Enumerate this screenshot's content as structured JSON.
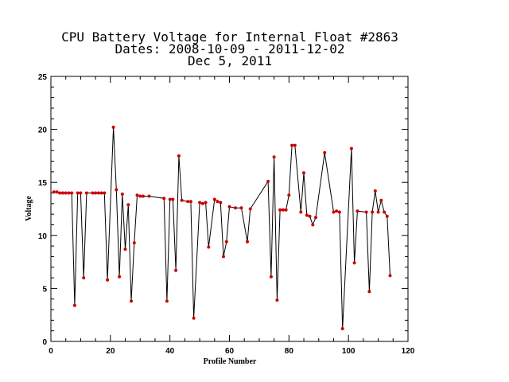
{
  "chart_data": {
    "type": "line",
    "title_lines": [
      "CPU Battery Voltage for Internal Float #2863",
      "Dates:  2008-10-09 -  2011-12-02",
      "Dec  5, 2011"
    ],
    "xlabel": "Profile Number",
    "ylabel": "Voltage",
    "xlim": [
      0,
      120
    ],
    "ylim": [
      0,
      25
    ],
    "xticks": [
      0,
      20,
      40,
      60,
      80,
      100,
      120
    ],
    "yticks": [
      0,
      5,
      10,
      15,
      20,
      25
    ],
    "grid": false,
    "series": [
      {
        "line_color": "#000000",
        "marker_color": "#cc0000",
        "x": [
          1,
          2,
          3,
          4,
          5,
          6,
          7,
          8,
          9,
          10,
          11,
          12,
          14,
          15,
          16,
          17,
          18,
          19,
          21,
          22,
          23,
          24,
          25,
          26,
          27,
          28,
          29,
          30,
          31,
          33,
          38,
          39,
          40,
          41,
          42,
          43,
          44,
          46,
          47,
          48,
          50,
          51,
          52,
          53,
          55,
          56,
          57,
          58,
          59,
          60,
          62,
          64,
          66,
          67,
          73,
          74,
          75,
          76,
          77,
          78,
          79,
          80,
          81,
          82,
          84,
          85,
          86,
          87,
          88,
          89,
          92,
          95,
          96,
          97,
          98,
          101,
          102,
          103,
          106,
          107,
          108,
          109,
          110,
          111,
          112,
          113,
          114
        ],
        "y": [
          14.1,
          14.1,
          14.0,
          14.0,
          14.0,
          14.0,
          14.0,
          3.4,
          14.0,
          14.0,
          6.0,
          14.0,
          14.0,
          14.0,
          14.0,
          14.0,
          14.0,
          5.8,
          20.2,
          14.3,
          6.1,
          13.9,
          8.7,
          12.9,
          3.8,
          9.3,
          13.8,
          13.7,
          13.7,
          13.7,
          13.5,
          3.8,
          13.4,
          13.4,
          6.7,
          17.5,
          13.3,
          13.2,
          13.2,
          2.2,
          13.1,
          13.0,
          13.1,
          8.9,
          13.4,
          13.2,
          13.1,
          8.0,
          9.4,
          12.7,
          12.6,
          12.6,
          9.4,
          12.5,
          15.1,
          6.1,
          17.4,
          3.9,
          12.4,
          12.4,
          12.4,
          13.8,
          18.5,
          18.5,
          12.2,
          15.9,
          11.9,
          11.8,
          11.0,
          11.7,
          17.8,
          12.2,
          12.3,
          12.2,
          1.2,
          18.2,
          7.4,
          12.3,
          12.2,
          4.7,
          12.2,
          14.2,
          12.2,
          13.3,
          12.2,
          11.8,
          6.2
        ]
      }
    ]
  }
}
